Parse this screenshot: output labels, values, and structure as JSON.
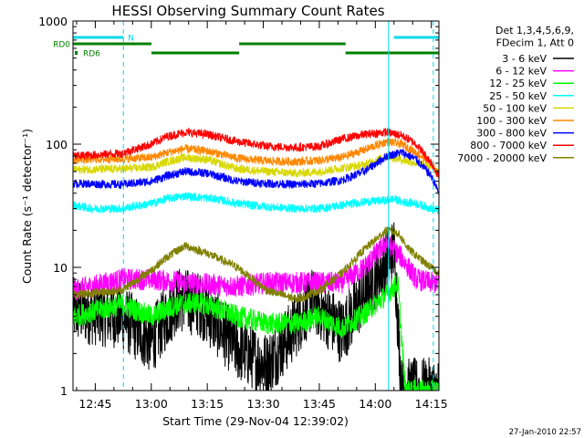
{
  "chart_data": {
    "type": "line",
    "title": "HESSI Observing Summary Count Rates",
    "xlabel": "Start Time (29-Nov-04 12:39:02)",
    "ylabel": "Count Rate (s⁻¹ detector⁻¹)",
    "yscale": "log",
    "ylim": [
      1,
      1000
    ],
    "xlim_minutes": [
      0,
      98
    ],
    "x_ticks": [
      "12:45",
      "13:00",
      "13:15",
      "13:30",
      "13:45",
      "14:00",
      "14:15"
    ],
    "y_ticks": [
      "1",
      "10",
      "100",
      "1000"
    ],
    "timestamp": "27-Jan-2010 22:57",
    "legend_header": [
      "Det 1,3,4,5,6,9,",
      "FDecim 1, Att 0"
    ],
    "legend_position": "top-right outside plot",
    "flags": [
      {
        "label": "N",
        "color": "#00d8e8",
        "intervals": [
          [
            0,
            13.5
          ],
          [
            86,
            98
          ]
        ]
      },
      {
        "label": "RD0",
        "color": "#008000",
        "intervals": [
          [
            0,
            21
          ],
          [
            44.5,
            73
          ]
        ]
      },
      {
        "label": "RD6",
        "color": "#008000",
        "intervals": [
          [
            21,
            44.5
          ],
          [
            73,
            98
          ]
        ]
      }
    ],
    "vlines": [
      {
        "x": 0,
        "style": "solid",
        "color": "#00d8e8"
      },
      {
        "x": 13.5,
        "style": "dashed",
        "color": "#00d8e8"
      },
      {
        "x": 84.5,
        "style": "solid",
        "color": "#00d8e8"
      },
      {
        "x": 96.5,
        "style": "dashed",
        "color": "#00d8e8"
      }
    ],
    "series": [
      {
        "name": "3 - 6 keV",
        "color": "#000000",
        "x": [
          0,
          13,
          21,
          28,
          34,
          44,
          52,
          58,
          64,
          72,
          78,
          83,
          86,
          88,
          92,
          96,
          98
        ],
        "y": [
          4.5,
          4.0,
          2.5,
          5.5,
          5.0,
          2.2,
          1.6,
          2.8,
          5.5,
          3.0,
          6.0,
          10,
          14,
          1.0,
          1.0,
          1.0,
          1.0
        ]
      },
      {
        "name": "6 - 12 keV",
        "color": "#ff00ff",
        "x": [
          0,
          13,
          21,
          30,
          44,
          52,
          60,
          72,
          78,
          84,
          88,
          92,
          96,
          98
        ],
        "y": [
          6.5,
          8.0,
          8.0,
          7.5,
          7.0,
          7.5,
          7.5,
          7.5,
          10,
          16,
          12,
          8.0,
          7.5,
          7.5
        ]
      },
      {
        "name": "12 - 25 keV",
        "color": "#00ff00",
        "x": [
          0,
          13,
          21,
          28,
          34,
          44,
          52,
          60,
          66,
          72,
          78,
          84,
          87,
          89,
          92,
          96,
          98
        ],
        "y": [
          4.0,
          5.0,
          4.0,
          5.0,
          5.2,
          4.0,
          3.5,
          3.5,
          4.0,
          3.2,
          4.2,
          6.0,
          7.5,
          1.0,
          1.0,
          1.0,
          1.0
        ]
      },
      {
        "name": "25 - 50 keV",
        "color": "#00ffff",
        "x": [
          0,
          5,
          13,
          21,
          25,
          30,
          38,
          44,
          52,
          60,
          66,
          72,
          78,
          84,
          86,
          88,
          92,
          96,
          98
        ],
        "y": [
          32,
          30,
          30,
          33,
          36,
          38,
          36,
          33,
          31,
          30,
          30,
          32,
          34,
          35,
          36,
          34,
          33,
          30,
          29
        ]
      },
      {
        "name": "50 - 100 keV",
        "color": "#d8d800",
        "x": [
          0,
          13,
          21,
          25,
          30,
          36,
          44,
          52,
          60,
          66,
          72,
          78,
          84,
          88,
          92,
          96,
          98
        ],
        "y": [
          62,
          63,
          65,
          72,
          78,
          75,
          63,
          60,
          58,
          60,
          64,
          68,
          80,
          75,
          70,
          66,
          60
        ]
      },
      {
        "name": "100 - 300 keV",
        "color": "#ff8800",
        "x": [
          0,
          13,
          21,
          25,
          30,
          36,
          44,
          52,
          60,
          66,
          72,
          78,
          84,
          88,
          92,
          96,
          98
        ],
        "y": [
          75,
          76,
          78,
          85,
          92,
          88,
          77,
          73,
          72,
          74,
          78,
          90,
          105,
          100,
          85,
          70,
          55
        ]
      },
      {
        "name": "300 - 800 keV",
        "color": "#0000ff",
        "x": [
          0,
          13,
          21,
          25,
          30,
          36,
          44,
          52,
          60,
          66,
          72,
          78,
          84,
          88,
          92,
          96,
          98
        ],
        "y": [
          48,
          47,
          50,
          55,
          60,
          58,
          50,
          48,
          47,
          48,
          51,
          60,
          80,
          86,
          75,
          55,
          40
        ]
      },
      {
        "name": "800 - 7000 keV",
        "color": "#ff0000",
        "x": [
          0,
          13,
          21,
          25,
          30,
          36,
          44,
          52,
          60,
          66,
          72,
          78,
          84,
          88,
          92,
          96,
          98
        ],
        "y": [
          80,
          84,
          100,
          115,
          125,
          120,
          105,
          96,
          94,
          96,
          110,
          120,
          125,
          118,
          100,
          70,
          55
        ]
      },
      {
        "name": "7000 - 20000 keV",
        "color": "#808000",
        "x": [
          0,
          13,
          21,
          25,
          30,
          36,
          44,
          52,
          60,
          66,
          72,
          78,
          84,
          87,
          90,
          94,
          98
        ],
        "y": [
          6.0,
          6.5,
          9.5,
          12,
          15,
          13,
          10,
          6.5,
          5.5,
          6.5,
          9.0,
          14,
          20,
          19,
          14,
          11,
          9
        ]
      }
    ],
    "extra_curves_note_hidden": []
  }
}
